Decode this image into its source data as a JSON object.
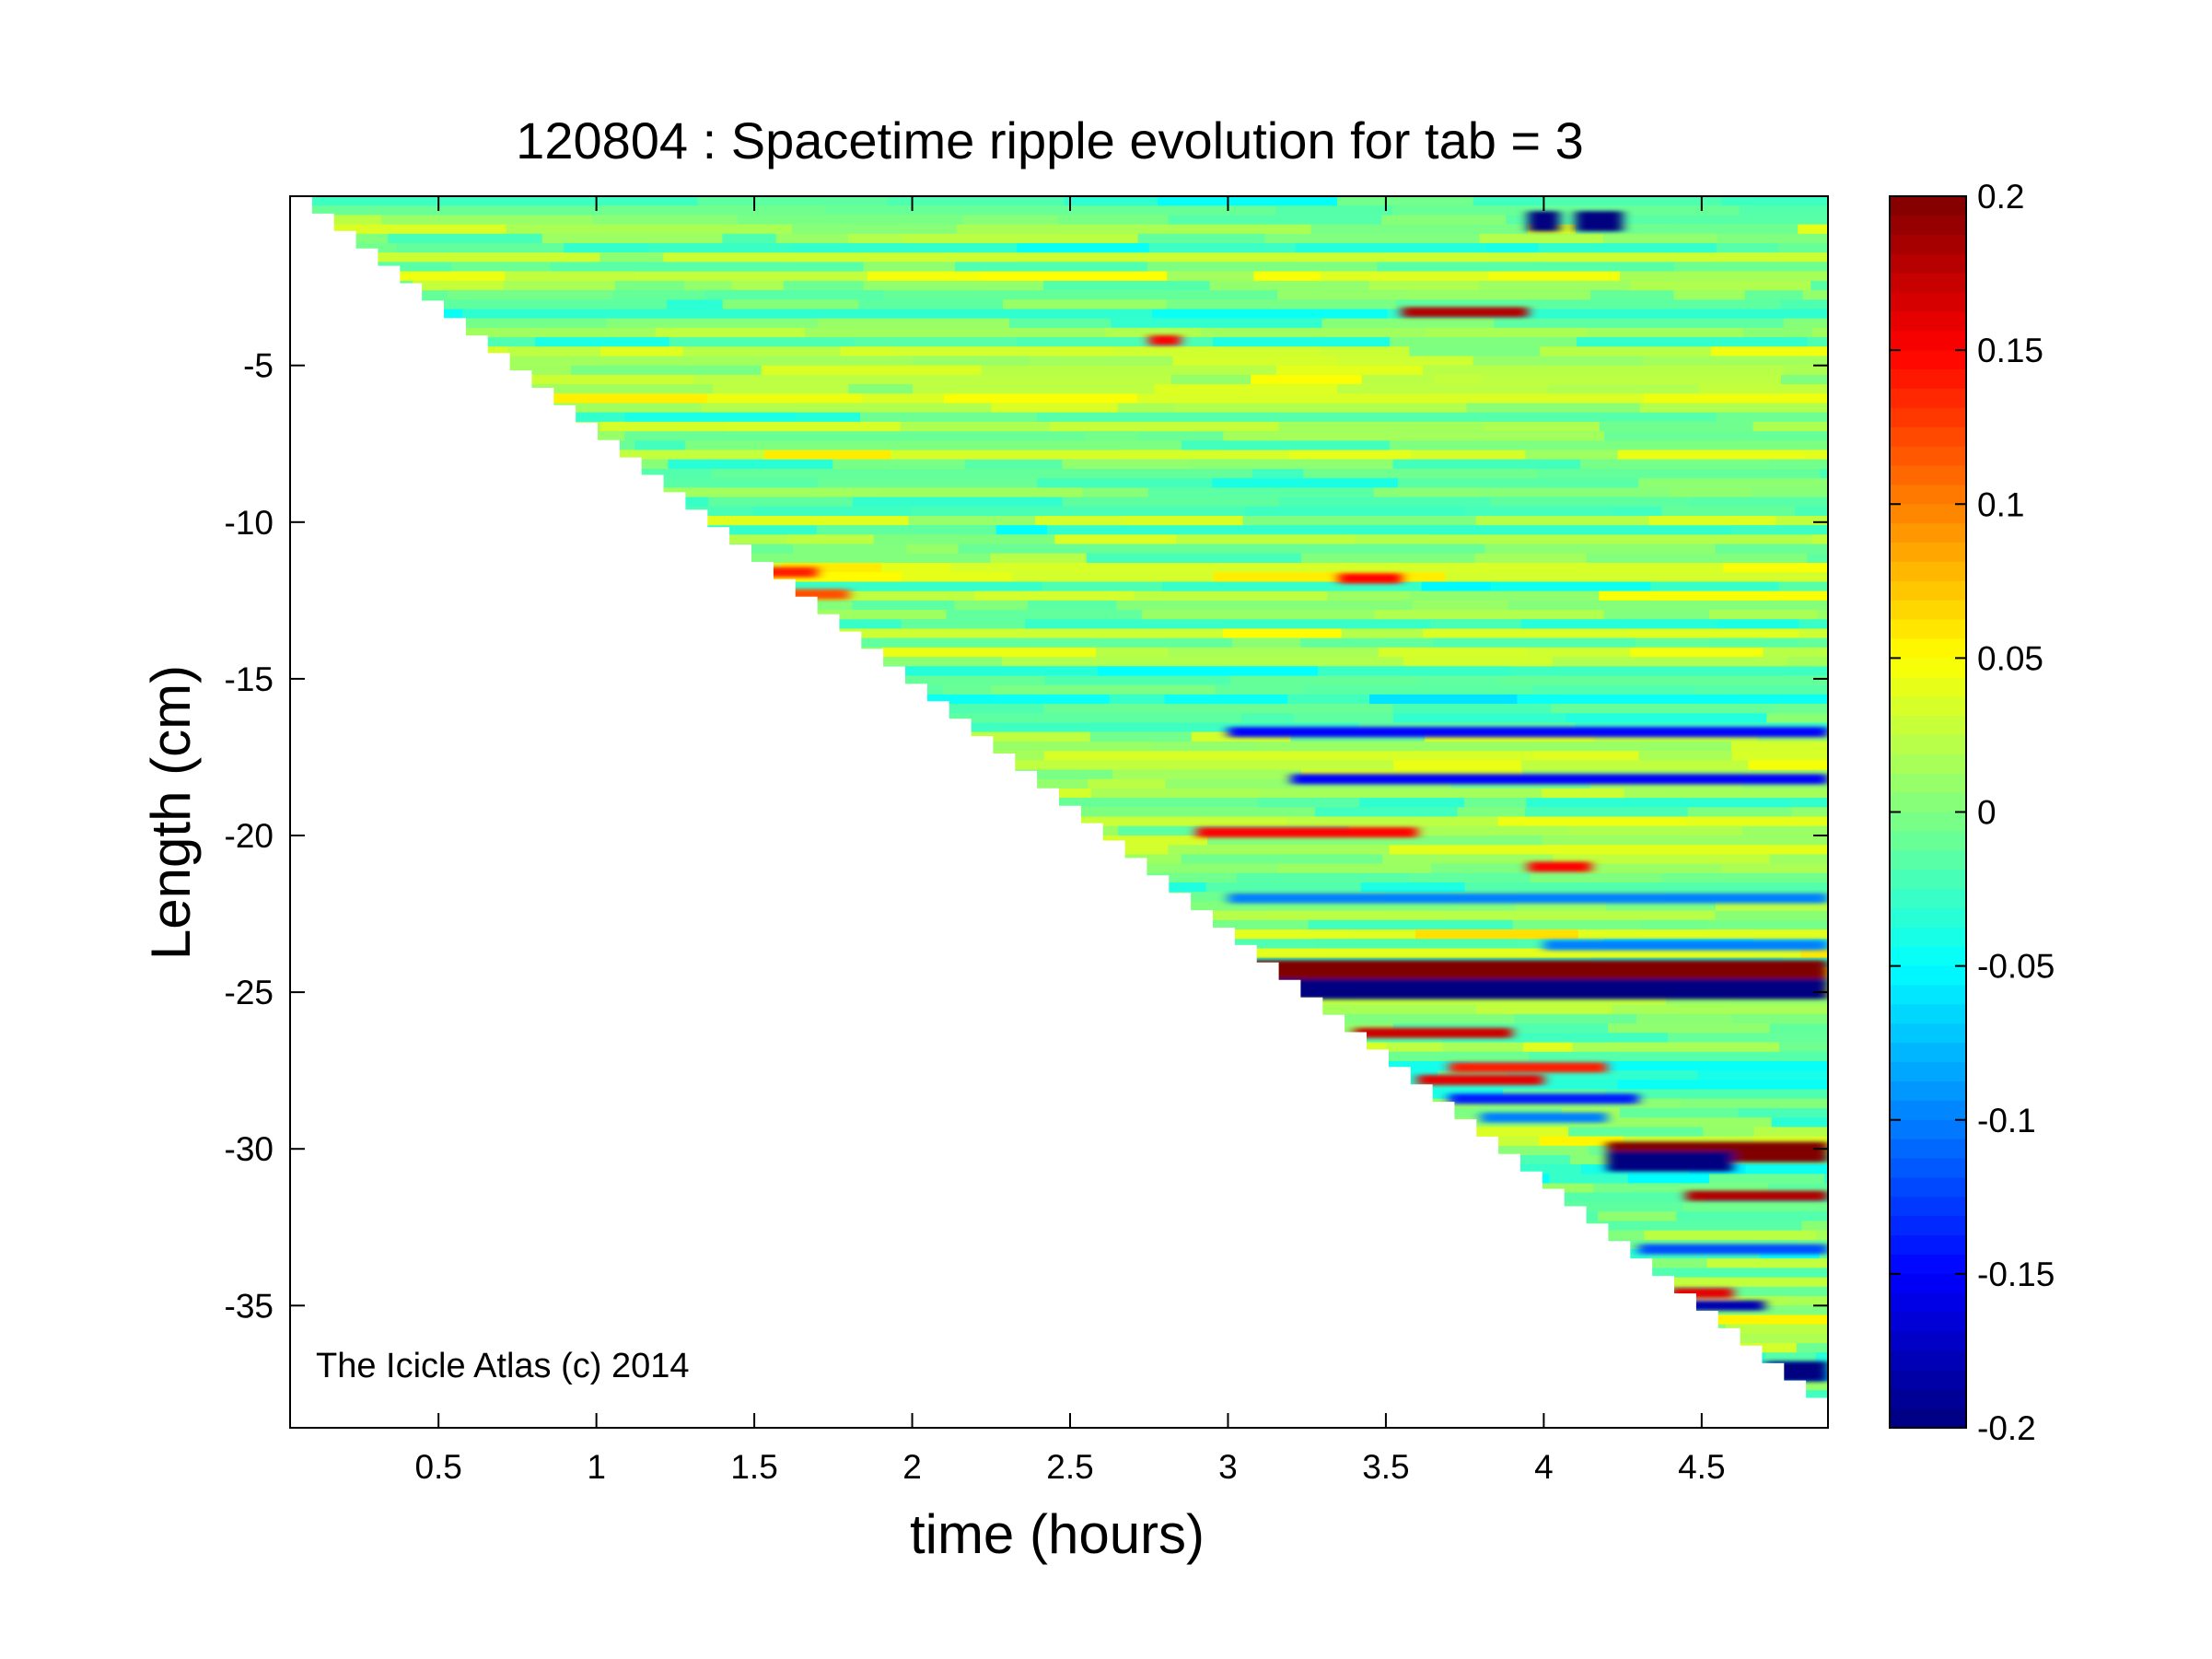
{
  "chart_data": {
    "type": "heatmap",
    "title": "120804 : Spacetime ripple evolution for tab = 3",
    "xlabel": "time (hours)",
    "ylabel": "Length (cm)",
    "xlim": [
      0.03,
      4.9
    ],
    "ylim": [
      -38.9,
      0.4
    ],
    "xticks": [
      0.5,
      1,
      1.5,
      2,
      2.5,
      3,
      3.5,
      4,
      4.5
    ],
    "xtick_labels": [
      "0.5",
      "1",
      "1.5",
      "2",
      "2.5",
      "3",
      "3.5",
      "4",
      "4.5"
    ],
    "yticks": [
      -5,
      -10,
      -15,
      -20,
      -25,
      -30,
      -35
    ],
    "ytick_labels": [
      "-5",
      "-10",
      "-15",
      "-20",
      "-25",
      "-30",
      "-35"
    ],
    "colorbar": {
      "colormap": "jet",
      "clim": [
        -0.2,
        0.2
      ],
      "ticks": [
        0.2,
        0.15,
        0.1,
        0.05,
        0,
        -0.05,
        -0.1,
        -0.15,
        -0.2
      ],
      "tick_labels": [
        "0.2",
        "0.15",
        "0.1",
        "0.05",
        "0",
        "-0.05",
        "-0.1",
        "-0.15",
        "-0.2"
      ]
    },
    "growth_front": {
      "description": "length grows linearly with time",
      "start": [
        0.03,
        0.4
      ],
      "end": [
        4.9,
        -38.5
      ]
    },
    "grid": false,
    "annotation": "The Icicle Atlas (c) 2014",
    "features": [
      {
        "length": -24.3,
        "t_start": 2.95,
        "t_end": 4.9,
        "value": 0.2
      },
      {
        "length": -24.9,
        "t_start": 2.95,
        "t_end": 4.9,
        "value": -0.2
      },
      {
        "length": -16.7,
        "t_start": 3.0,
        "t_end": 4.9,
        "value": -0.15
      },
      {
        "length": -18.2,
        "t_start": 3.2,
        "t_end": 4.9,
        "value": -0.15
      },
      {
        "length": -30.1,
        "t_start": 4.2,
        "t_end": 4.9,
        "value": 0.2
      },
      {
        "length": -30.4,
        "t_start": 4.2,
        "t_end": 4.6,
        "value": -0.2
      },
      {
        "length": -31.5,
        "t_start": 4.45,
        "t_end": 4.9,
        "value": 0.18
      },
      {
        "length": -35.0,
        "t_start": 4.45,
        "t_end": 4.7,
        "value": -0.18
      },
      {
        "length": -37.1,
        "t_start": 4.7,
        "t_end": 4.9,
        "value": -0.2
      },
      {
        "length": -0.4,
        "t_start": 3.95,
        "t_end": 4.05,
        "value": -0.2
      },
      {
        "length": -0.4,
        "t_start": 4.1,
        "t_end": 4.25,
        "value": -0.2
      },
      {
        "length": -3.3,
        "t_start": 3.55,
        "t_end": 3.95,
        "value": 0.18
      },
      {
        "length": -4.2,
        "t_start": 2.75,
        "t_end": 2.85,
        "value": 0.15
      },
      {
        "length": -11.6,
        "t_start": 1.3,
        "t_end": 1.7,
        "value": 0.14
      },
      {
        "length": -11.8,
        "t_start": 3.35,
        "t_end": 3.55,
        "value": 0.15
      },
      {
        "length": -12.3,
        "t_start": 1.5,
        "t_end": 1.8,
        "value": 0.12
      },
      {
        "length": -19.9,
        "t_start": 2.9,
        "t_end": 3.6,
        "value": 0.15
      },
      {
        "length": -21.0,
        "t_start": 3.95,
        "t_end": 4.15,
        "value": 0.15
      },
      {
        "length": -22.0,
        "t_start": 3.0,
        "t_end": 4.9,
        "value": -0.1
      },
      {
        "length": -23.5,
        "t_start": 4.0,
        "t_end": 4.9,
        "value": -0.1
      },
      {
        "length": -26.3,
        "t_start": 3.4,
        "t_end": 3.9,
        "value": 0.17
      },
      {
        "length": -27.4,
        "t_start": 3.7,
        "t_end": 4.2,
        "value": 0.14
      },
      {
        "length": -27.8,
        "t_start": 3.6,
        "t_end": 4.0,
        "value": 0.16
      },
      {
        "length": -28.4,
        "t_start": 3.7,
        "t_end": 4.3,
        "value": -0.14
      },
      {
        "length": -29.0,
        "t_start": 3.8,
        "t_end": 4.2,
        "value": -0.1
      },
      {
        "length": -33.2,
        "t_start": 4.3,
        "t_end": 4.9,
        "value": -0.12
      },
      {
        "length": -34.6,
        "t_start": 4.4,
        "t_end": 4.6,
        "value": 0.16
      }
    ]
  }
}
